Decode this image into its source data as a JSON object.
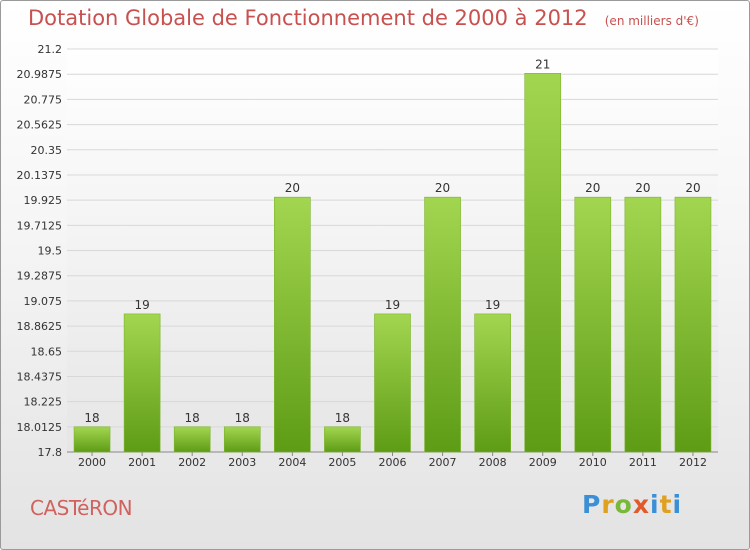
{
  "header": {
    "title": "Dotation Globale de Fonctionnement de 2000 à 2012",
    "subtitle": "(en milliers d'€)"
  },
  "footer": {
    "commune": "CASTéRON",
    "logo_text": "Proxiti"
  },
  "colors": {
    "title": "#c8504f",
    "bar_light": "#9fd24c",
    "bar_dark": "#5c9a14",
    "commune": "#d0625f"
  },
  "chart_data": {
    "type": "bar",
    "title": "Dotation Globale de Fonctionnement de 2000 à 2012",
    "subtitle": "(en milliers d'€)",
    "categories": [
      "2000",
      "2001",
      "2002",
      "2003",
      "2004",
      "2005",
      "2006",
      "2007",
      "2008",
      "2009",
      "2010",
      "2011",
      "2012"
    ],
    "values": [
      18.0125,
      18.965,
      18.0125,
      18.0125,
      19.95,
      18.0125,
      18.965,
      19.95,
      18.965,
      20.995,
      19.95,
      19.95,
      19.95
    ],
    "data_labels": [
      "18",
      "19",
      "18",
      "18",
      "20",
      "18",
      "19",
      "20",
      "19",
      "21",
      "20",
      "20",
      "20"
    ],
    "ylim": [
      17.8,
      21.2
    ],
    "yticks": [
      "17.8",
      "18.0125",
      "18.225",
      "18.4375",
      "18.65",
      "18.8625",
      "19.075",
      "19.2875",
      "19.5",
      "19.7125",
      "19.925",
      "20.1375",
      "20.35",
      "20.5625",
      "20.775",
      "20.9875",
      "21.2"
    ],
    "xlabel": "",
    "ylabel": "",
    "grid": true,
    "legend": "none"
  }
}
